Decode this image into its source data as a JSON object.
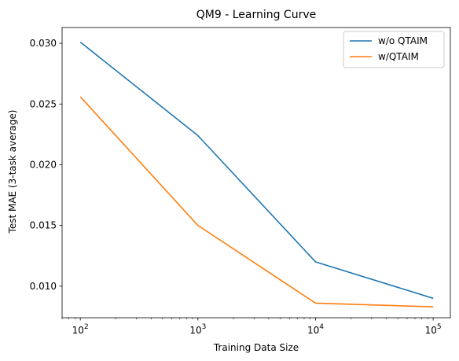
{
  "chart_data": {
    "type": "line",
    "title": "QM9 - Learning Curve",
    "xlabel": "Training Data Size",
    "ylabel": "Test MAE (3-task average)",
    "x_scale": "log",
    "x": [
      100,
      1000,
      10000,
      100000
    ],
    "x_tick_labels": [
      {
        "base": "10",
        "exp": "2"
      },
      {
        "base": "10",
        "exp": "3"
      },
      {
        "base": "10",
        "exp": "4"
      },
      {
        "base": "10",
        "exp": "5"
      }
    ],
    "xlim": [
      70,
      140000
    ],
    "ylim": [
      0.0074,
      0.0313
    ],
    "y_ticks": [
      0.01,
      0.015,
      0.02,
      0.025,
      0.03
    ],
    "y_tick_labels": [
      "0.010",
      "0.015",
      "0.020",
      "0.025",
      "0.030"
    ],
    "grid": false,
    "legend_position": "top-right",
    "series": [
      {
        "name": "w/o QTAIM",
        "color": "#1f77b4",
        "values": [
          0.0301,
          0.0224,
          0.012,
          0.009
        ]
      },
      {
        "name": "w/QTAIM",
        "color": "#ff7f0e",
        "values": [
          0.0256,
          0.015,
          0.0086,
          0.0083
        ]
      }
    ]
  }
}
